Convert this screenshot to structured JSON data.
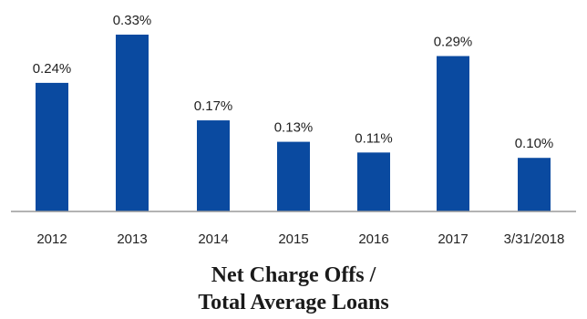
{
  "chart_data": {
    "type": "bar",
    "title": "Net Charge Offs / Total Average Loans",
    "title_lines": [
      "Net Charge Offs /",
      "Total Average Loans"
    ],
    "xlabel": "",
    "ylabel": "",
    "categories": [
      "2012",
      "2013",
      "2014",
      "2015",
      "2016",
      "2017",
      "3/31/2018"
    ],
    "values": [
      0.24,
      0.33,
      0.17,
      0.13,
      0.11,
      0.29,
      0.1
    ],
    "data_labels": [
      "0.24%",
      "0.33%",
      "0.17%",
      "0.13%",
      "0.11%",
      "0.29%",
      "0.10%"
    ],
    "ylim": [
      0,
      0.33
    ],
    "grid": false,
    "legend": "none",
    "bar_color": "#0a4aa0"
  }
}
